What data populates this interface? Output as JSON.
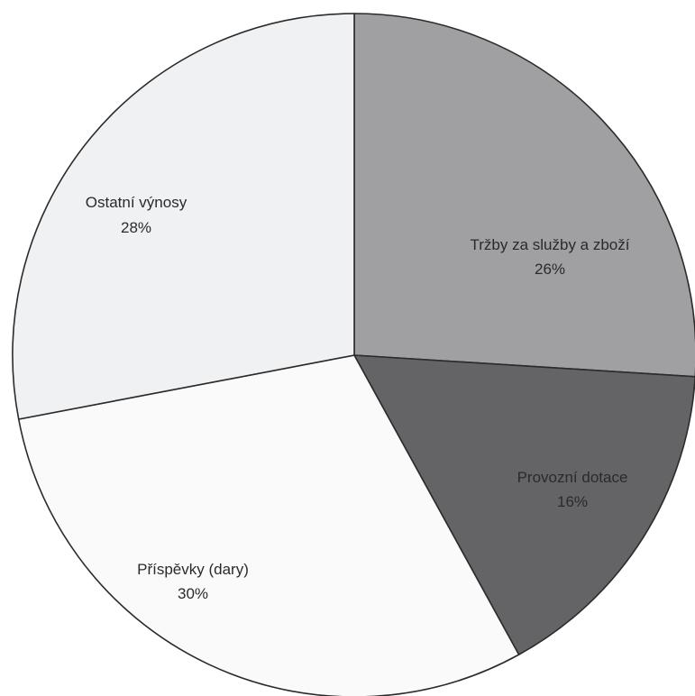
{
  "chart_data": {
    "type": "pie",
    "title": "",
    "start_angle_deg": 0,
    "direction": "clockwise",
    "slices": [
      {
        "label": "Tržby za služby a zboží",
        "percent_label": "26%",
        "value": 26,
        "color": "#a0a0a2"
      },
      {
        "label": "Provozní dotace",
        "percent_label": "16%",
        "value": 16,
        "color": "#646466"
      },
      {
        "label": "Příspěvky (dary)",
        "percent_label": "30%",
        "value": 30,
        "color": "#fafafa"
      },
      {
        "label": "Ostatní výnosy",
        "percent_label": "28%",
        "value": 28,
        "color": "#f0f1f3"
      }
    ]
  }
}
